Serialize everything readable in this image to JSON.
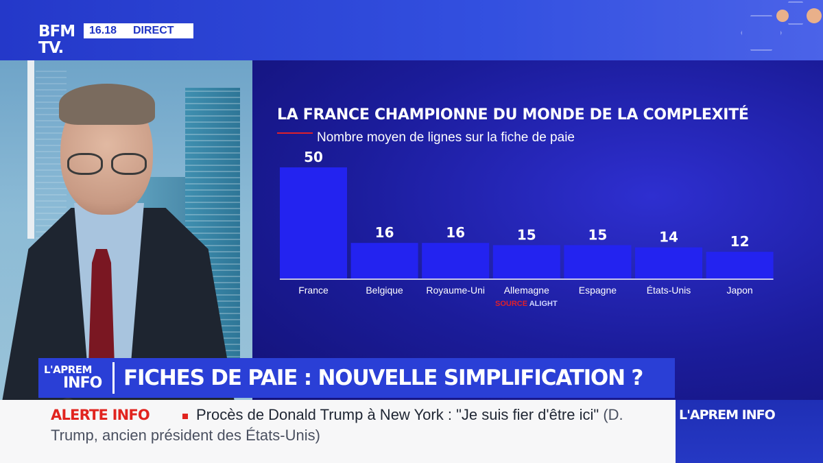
{
  "channel": {
    "logo_line1": "BFM",
    "logo_line2": "TV.",
    "time": "16.18",
    "live_label": "DIRECT"
  },
  "chart_data": {
    "type": "bar",
    "title": "LA FRANCE CHAMPIONNE DU MONDE DE LA COMPLEXITÉ",
    "subtitle": "Nombre moyen de lignes sur la fiche de paie",
    "categories": [
      "France",
      "Belgique",
      "Royaume-Uni",
      "Allemagne",
      "Espagne",
      "États-Unis",
      "Japon"
    ],
    "values": [
      50,
      16,
      16,
      15,
      15,
      14,
      12
    ],
    "ylim": [
      0,
      50
    ],
    "grid": false,
    "legend": "none",
    "bar_color": "#2323f0",
    "label_position": "above-bar",
    "source_label": "SOURCE",
    "source_name": "ALIGHT"
  },
  "headline": {
    "program_line1": "L'APREM",
    "program_line2": "INFO",
    "text": "FICHES DE PAIE : NOUVELLE SIMPLIFICATION ?"
  },
  "ticker": {
    "alert_label": "ALERTE INFO",
    "lead": "Procès de Donald Trump à New York : \"Je suis fier d'être ici\"",
    "attribution": "(D. Trump, ancien président des États-Unis)"
  },
  "brand": {
    "label": "L'APREM INFO"
  },
  "colors": {
    "accent_red": "#e1241f",
    "brand_blue": "#2a3fd6",
    "panel_navy": "#1b1c9a"
  }
}
